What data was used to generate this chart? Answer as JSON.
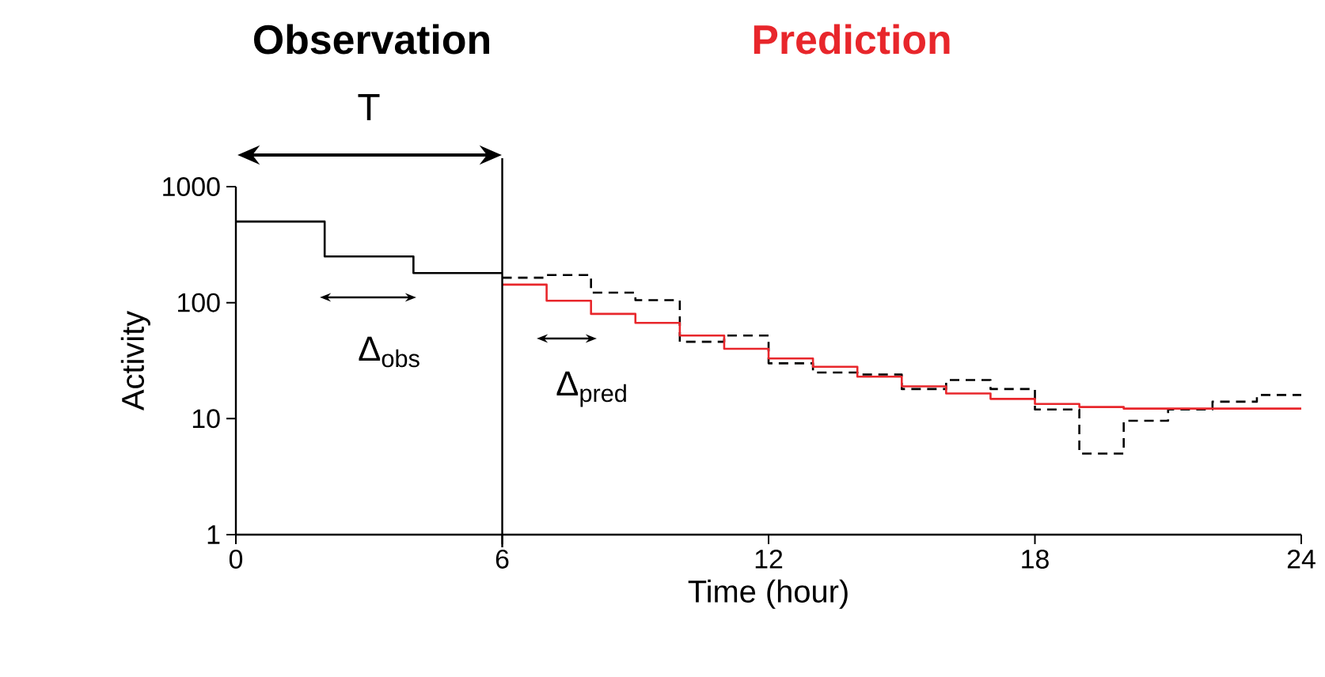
{
  "chart_data": {
    "type": "step",
    "xlabel": "Time (hour)",
    "ylabel": "Activity",
    "xlim": [
      0,
      24
    ],
    "xticks": [
      0,
      6,
      12,
      18,
      24
    ],
    "ylim": [
      1,
      1000
    ],
    "yticks": [
      1,
      10,
      100,
      1000
    ],
    "log": "y",
    "grid": false,
    "series": [
      {
        "color": "#000000",
        "line_style": "solid",
        "x": [
          0,
          2,
          4,
          6
        ],
        "values": [
          500,
          250,
          180,
          180
        ]
      },
      {
        "color": "#000000",
        "line_style": "dashed",
        "x": [
          6,
          7,
          8,
          9,
          10,
          11,
          12,
          13,
          14,
          15,
          16,
          17,
          18,
          19,
          20,
          21,
          22,
          23,
          24
        ],
        "values": [
          164,
          173,
          122,
          105,
          46,
          52,
          30,
          25,
          24,
          18,
          21.5,
          18,
          12,
          5,
          9.6,
          12,
          14,
          16,
          16
        ]
      },
      {
        "color": "#e8262b",
        "line_style": "solid",
        "x": [
          6,
          7,
          8,
          9,
          10,
          11,
          12,
          13,
          14,
          15,
          16,
          17,
          18,
          19,
          20,
          24
        ],
        "values": [
          143,
          104,
          80,
          67,
          52,
          40,
          33,
          28,
          23,
          19,
          16.5,
          14.8,
          13.4,
          12.6,
          12.2,
          12.2
        ]
      }
    ],
    "ref_lines": [
      {
        "axis": "x",
        "value": 6,
        "color": "#000000"
      }
    ],
    "annotations": [
      "Observation",
      "Prediction",
      "T",
      "Δ$_{obs}$",
      "Δ$_{pred}$"
    ]
  }
}
